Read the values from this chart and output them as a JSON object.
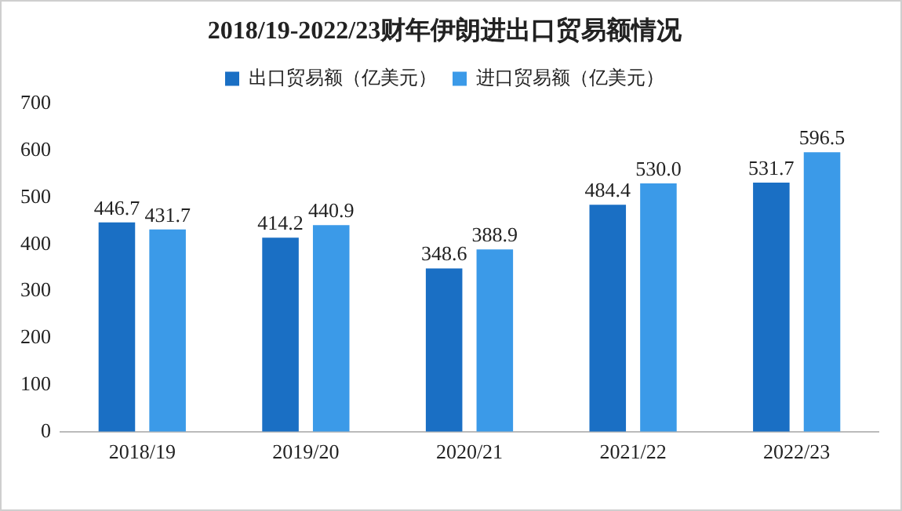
{
  "chart_data": {
    "type": "bar",
    "title": "2018/19-2022/23财年伊朗进出口贸易额情况",
    "categories": [
      "2018/19",
      "2019/20",
      "2020/21",
      "2021/22",
      "2022/23"
    ],
    "series": [
      {
        "name": "出口贸易额（亿美元）",
        "color": "#1a6fc4",
        "values": [
          446.7,
          414.2,
          348.6,
          484.4,
          531.7
        ]
      },
      {
        "name": "进口贸易额（亿美元）",
        "color": "#3b9ae8",
        "values": [
          431.7,
          440.9,
          388.9,
          530.0,
          596.5
        ]
      }
    ],
    "value_labels": [
      [
        "446.7",
        "414.2",
        "348.6",
        "484.4",
        "531.7"
      ],
      [
        "431.7",
        "440.9",
        "388.9",
        "530.0",
        "596.5"
      ]
    ],
    "ylim": [
      0,
      700
    ],
    "yticks": [
      0,
      100,
      200,
      300,
      400,
      500,
      600,
      700
    ],
    "grid": false,
    "legend": "top"
  }
}
